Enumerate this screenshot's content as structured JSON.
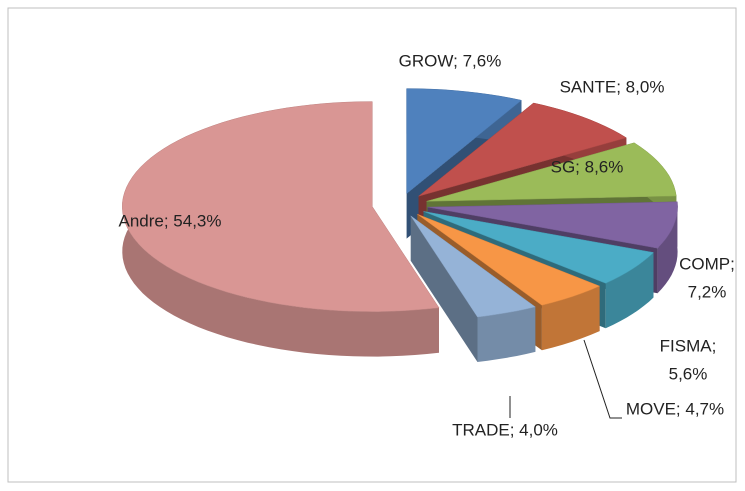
{
  "chart_data": {
    "type": "pie3d",
    "values": [
      7.6,
      8.0,
      8.6,
      7.2,
      5.6,
      4.7,
      4.0,
      54.3
    ],
    "value_labels": [
      [
        "GROW; 7,6%"
      ],
      [
        "SANTE; 8,0%"
      ],
      [
        "SG; 8,6%"
      ],
      [
        "COMP;",
        "7,2%"
      ],
      [
        "FISMA;",
        "5,6%"
      ],
      [
        "MOVE; 4,7%"
      ],
      [
        "TRADE; 4,0%"
      ],
      [
        "Andre; 54,3%"
      ]
    ],
    "colors": [
      "#4f81bd",
      "#c0504d",
      "#9bbb59",
      "#8064a2",
      "#4bacc6",
      "#f79646",
      "#95b3d7",
      "#d99694"
    ]
  }
}
